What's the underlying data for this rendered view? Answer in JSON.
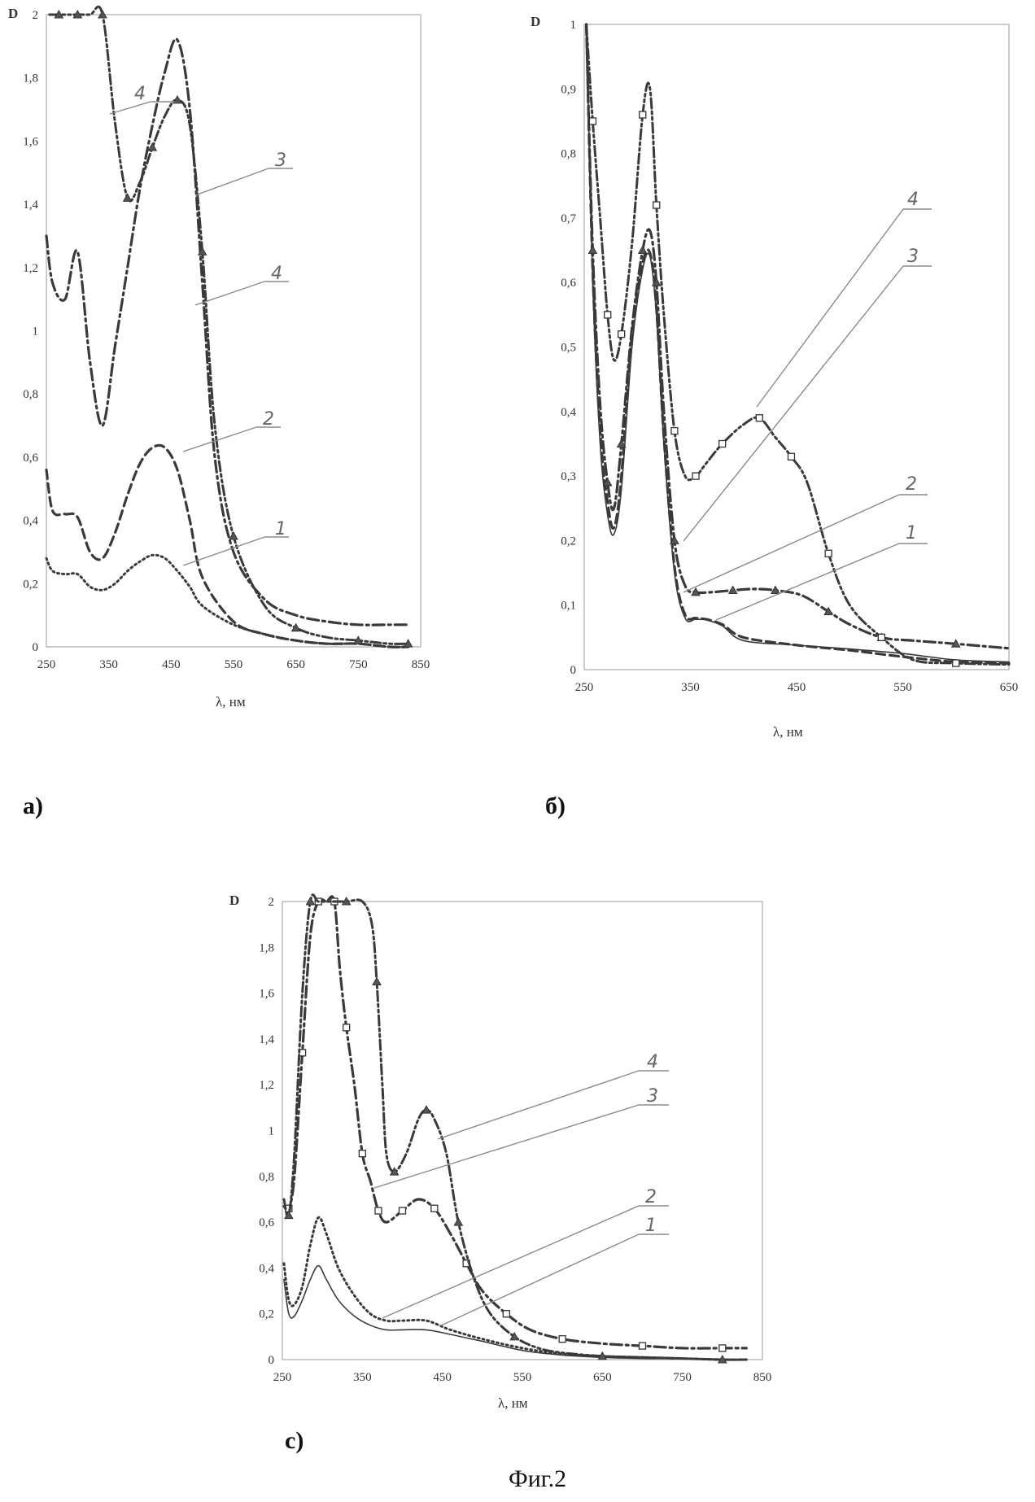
{
  "figure_caption": "Фиг.2",
  "chart_data": [
    {
      "panel": "a)",
      "type": "line",
      "ylabel": "D",
      "xlabel": "λ, нм",
      "xlim": [
        250,
        850
      ],
      "ylim": [
        0,
        2
      ],
      "xticks": [
        "250",
        "350",
        "450",
        "550",
        "650",
        "750",
        "850"
      ],
      "yticks": [
        "0",
        "0,2",
        "0,4",
        "0,6",
        "0,8",
        "1",
        "1,2",
        "1,4",
        "1,6",
        "1,8",
        "2"
      ],
      "grid": false,
      "series": [
        {
          "name": "1",
          "style": "dotted",
          "x": [
            250,
            260,
            280,
            300,
            320,
            340,
            360,
            380,
            400,
            420,
            440,
            460,
            480,
            500,
            550,
            600,
            650,
            700,
            750,
            800,
            830
          ],
          "y": [
            0.28,
            0.24,
            0.23,
            0.23,
            0.19,
            0.18,
            0.2,
            0.24,
            0.27,
            0.29,
            0.28,
            0.24,
            0.19,
            0.13,
            0.07,
            0.04,
            0.02,
            0.01,
            0.01,
            0.0,
            0.0
          ]
        },
        {
          "name": "2",
          "style": "dashed",
          "x": [
            250,
            260,
            280,
            300,
            320,
            340,
            360,
            380,
            400,
            420,
            440,
            460,
            480,
            500,
            550,
            600,
            650,
            700,
            750,
            800,
            830
          ],
          "y": [
            0.56,
            0.43,
            0.42,
            0.41,
            0.3,
            0.28,
            0.36,
            0.48,
            0.58,
            0.63,
            0.63,
            0.56,
            0.4,
            0.22,
            0.08,
            0.04,
            0.02,
            0.01,
            0.01,
            0.0,
            0.0
          ]
        },
        {
          "name": "3",
          "style": "dash-dot",
          "x": [
            250,
            260,
            280,
            300,
            320,
            340,
            360,
            380,
            400,
            420,
            440,
            460,
            480,
            500,
            520,
            550,
            600,
            650,
            700,
            750,
            800,
            830
          ],
          "y": [
            1.3,
            1.15,
            1.1,
            1.25,
            0.9,
            0.7,
            0.95,
            1.2,
            1.45,
            1.65,
            1.82,
            1.92,
            1.7,
            1.15,
            0.6,
            0.3,
            0.15,
            0.1,
            0.08,
            0.07,
            0.07,
            0.07
          ]
        },
        {
          "name": "4",
          "style": "dash-dot-dot",
          "markers": true,
          "x": [
            255,
            270,
            280,
            300,
            320,
            340,
            360,
            380,
            400,
            420,
            440,
            460,
            480,
            500,
            520,
            550,
            600,
            650,
            700,
            750,
            800,
            830
          ],
          "y": [
            2,
            2,
            2,
            2,
            2,
            2,
            1.66,
            1.42,
            1.47,
            1.58,
            1.68,
            1.73,
            1.65,
            1.25,
            0.7,
            0.35,
            0.13,
            0.06,
            0.03,
            0.02,
            0.01,
            0.01
          ]
        }
      ],
      "curve_labels": [
        "4",
        "3",
        "4",
        "2",
        "1"
      ]
    },
    {
      "panel": "б)",
      "type": "line",
      "ylabel": "D",
      "xlabel": "λ, нм",
      "xlim": [
        250,
        650
      ],
      "ylim": [
        0,
        1
      ],
      "xticks": [
        "250",
        "350",
        "450",
        "550",
        "650"
      ],
      "yticks": [
        "0",
        "0,1",
        "0,2",
        "0,3",
        "0,4",
        "0,5",
        "0,6",
        "0,7",
        "0,8",
        "0,9",
        "1"
      ],
      "grid": false,
      "series": [
        {
          "name": "1",
          "style": "solid",
          "x": [
            252,
            258,
            265,
            272,
            278,
            285,
            295,
            305,
            312,
            318,
            325,
            335,
            345,
            355,
            365,
            380,
            400,
            450,
            500,
            550,
            600,
            650
          ],
          "y": [
            1.0,
            0.6,
            0.35,
            0.24,
            0.21,
            0.28,
            0.5,
            0.62,
            0.64,
            0.55,
            0.35,
            0.15,
            0.08,
            0.078,
            0.077,
            0.068,
            0.045,
            0.038,
            0.032,
            0.025,
            0.015,
            0.012
          ]
        },
        {
          "name": "2",
          "style": "dashed",
          "x": [
            252,
            258,
            265,
            272,
            278,
            285,
            295,
            305,
            312,
            318,
            325,
            335,
            345,
            355,
            365,
            380,
            400,
            450,
            500,
            550,
            600,
            650
          ],
          "y": [
            1.0,
            0.62,
            0.37,
            0.26,
            0.22,
            0.3,
            0.52,
            0.63,
            0.645,
            0.56,
            0.36,
            0.16,
            0.085,
            0.08,
            0.078,
            0.07,
            0.05,
            0.038,
            0.03,
            0.02,
            0.012,
            0.01
          ]
        },
        {
          "name": "3",
          "style": "dash-dot",
          "markers": "triangle",
          "x": [
            252,
            258,
            265,
            272,
            278,
            285,
            295,
            305,
            312,
            318,
            325,
            335,
            345,
            355,
            370,
            390,
            410,
            430,
            455,
            480,
            500,
            530,
            560,
            600,
            650
          ],
          "y": [
            1.0,
            0.65,
            0.41,
            0.29,
            0.25,
            0.35,
            0.53,
            0.65,
            0.68,
            0.6,
            0.4,
            0.2,
            0.13,
            0.12,
            0.12,
            0.123,
            0.125,
            0.123,
            0.115,
            0.09,
            0.07,
            0.05,
            0.045,
            0.04,
            0.033
          ]
        },
        {
          "name": "4",
          "style": "dash-dot-dot",
          "markers": "square",
          "x": [
            252,
            258,
            265,
            272,
            278,
            285,
            295,
            305,
            312,
            318,
            325,
            335,
            345,
            355,
            365,
            380,
            400,
            415,
            430,
            445,
            460,
            480,
            500,
            530,
            560,
            600,
            650
          ],
          "y": [
            1.0,
            0.85,
            0.7,
            0.55,
            0.48,
            0.52,
            0.66,
            0.86,
            0.9,
            0.72,
            0.55,
            0.37,
            0.3,
            0.3,
            0.32,
            0.35,
            0.38,
            0.39,
            0.36,
            0.33,
            0.29,
            0.18,
            0.1,
            0.05,
            0.015,
            0.01,
            0.008
          ]
        }
      ],
      "curve_labels": [
        "4",
        "3",
        "2",
        "1"
      ]
    },
    {
      "panel": "с)",
      "type": "line",
      "ylabel": "D",
      "xlabel": "λ, нм",
      "xlim": [
        250,
        850
      ],
      "ylim": [
        0,
        2
      ],
      "xticks": [
        "250",
        "350",
        "450",
        "550",
        "650",
        "750",
        "850"
      ],
      "yticks": [
        "0",
        "0,2",
        "0,4",
        "0,6",
        "0,8",
        "1",
        "1,2",
        "1,4",
        "1,6",
        "1,8",
        "2"
      ],
      "grid": false,
      "series": [
        {
          "name": "1",
          "style": "solid",
          "x": [
            252,
            258,
            265,
            275,
            285,
            295,
            305,
            320,
            340,
            360,
            380,
            400,
            430,
            460,
            500,
            550,
            600,
            650,
            700,
            750,
            800,
            830
          ],
          "y": [
            0.35,
            0.2,
            0.19,
            0.26,
            0.35,
            0.41,
            0.35,
            0.26,
            0.19,
            0.15,
            0.13,
            0.13,
            0.13,
            0.11,
            0.08,
            0.04,
            0.02,
            0.01,
            0.005,
            0.005,
            0.0,
            0.0
          ]
        },
        {
          "name": "2",
          "style": "dotted",
          "x": [
            252,
            258,
            265,
            275,
            285,
            295,
            305,
            320,
            340,
            360,
            380,
            400,
            430,
            460,
            500,
            550,
            600,
            650,
            700,
            750,
            800,
            830
          ],
          "y": [
            0.42,
            0.26,
            0.24,
            0.32,
            0.5,
            0.62,
            0.55,
            0.4,
            0.28,
            0.2,
            0.17,
            0.17,
            0.17,
            0.13,
            0.09,
            0.05,
            0.025,
            0.015,
            0.01,
            0.005,
            0.0,
            0.0
          ]
        },
        {
          "name": "3",
          "style": "dash-dot",
          "markers": "square",
          "x": [
            252,
            258,
            265,
            275,
            285,
            295,
            305,
            315,
            322,
            330,
            340,
            350,
            360,
            370,
            380,
            400,
            420,
            440,
            460,
            480,
            500,
            530,
            560,
            600,
            650,
            700,
            750,
            800,
            830
          ],
          "y": [
            0.67,
            0.66,
            0.8,
            1.34,
            1.85,
            2.0,
            2.0,
            2.0,
            1.7,
            1.45,
            1.2,
            0.9,
            0.78,
            0.65,
            0.6,
            0.65,
            0.7,
            0.66,
            0.55,
            0.42,
            0.3,
            0.2,
            0.13,
            0.09,
            0.07,
            0.06,
            0.05,
            0.05,
            0.05
          ]
        },
        {
          "name": "4",
          "style": "dash-dot-dot",
          "markers": "triangle",
          "x": [
            252,
            258,
            265,
            275,
            285,
            295,
            310,
            330,
            350,
            362,
            368,
            375,
            380,
            390,
            405,
            420,
            430,
            440,
            455,
            470,
            490,
            510,
            540,
            570,
            600,
            650,
            700,
            750,
            800,
            830
          ],
          "y": [
            0.7,
            0.63,
            0.9,
            1.6,
            2.0,
            2.0,
            2.0,
            2.0,
            2.0,
            1.9,
            1.65,
            1.2,
            0.9,
            0.82,
            0.9,
            1.05,
            1.09,
            1.05,
            0.9,
            0.6,
            0.35,
            0.2,
            0.1,
            0.05,
            0.03,
            0.015,
            0.01,
            0.005,
            0.0,
            0.0
          ]
        }
      ],
      "curve_labels": [
        "4",
        "3",
        "2",
        "1"
      ]
    }
  ]
}
